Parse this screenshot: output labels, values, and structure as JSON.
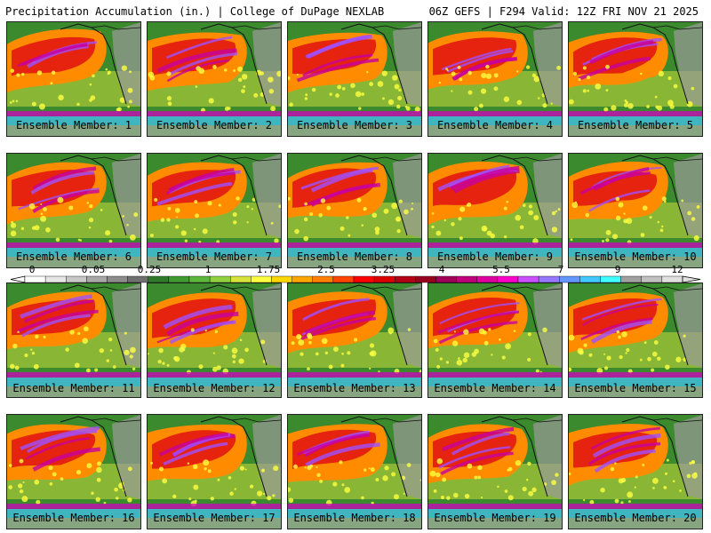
{
  "header": {
    "left_title": "Precipitation Accumulation (in.) | College of DuPage NEXLAB",
    "right_title": "06Z GEFS | F294 Valid: 12Z FRI NOV 21 2025"
  },
  "members": [
    {
      "label": "Ensemble Member: 1"
    },
    {
      "label": "Ensemble Member: 2"
    },
    {
      "label": "Ensemble Member: 3"
    },
    {
      "label": "Ensemble Member: 4"
    },
    {
      "label": "Ensemble Member: 5"
    },
    {
      "label": "Ensemble Member: 6"
    },
    {
      "label": "Ensemble Member: 7"
    },
    {
      "label": "Ensemble Member: 8"
    },
    {
      "label": "Ensemble Member: 9"
    },
    {
      "label": "Ensemble Member: 10"
    },
    {
      "label": "Ensemble Member: 11"
    },
    {
      "label": "Ensemble Member: 12"
    },
    {
      "label": "Ensemble Member: 13"
    },
    {
      "label": "Ensemble Member: 14"
    },
    {
      "label": "Ensemble Member: 15"
    },
    {
      "label": "Ensemble Member: 16"
    },
    {
      "label": "Ensemble Member: 17"
    },
    {
      "label": "Ensemble Member: 18"
    },
    {
      "label": "Ensemble Member: 19"
    },
    {
      "label": "Ensemble Member: 20"
    }
  ],
  "colorbar": {
    "tick_labels": [
      "0",
      "0.05",
      "0.25",
      "1",
      "1.75",
      "2.5",
      "3.25",
      "4",
      "5.5",
      "7",
      "9",
      "12"
    ],
    "colors": [
      "#ffffff",
      "#e6e6e6",
      "#c8c8c8",
      "#a8a8a8",
      "#8c8c8c",
      "#707070",
      "#2f7a2a",
      "#3f9a30",
      "#5cb83a",
      "#8fd13f",
      "#d6e33a",
      "#ffff40",
      "#ffd700",
      "#ffa500",
      "#ff7f00",
      "#ff4500",
      "#ff0000",
      "#dc0000",
      "#b40014",
      "#96001e",
      "#a0005a",
      "#c0007a",
      "#e000a0",
      "#ff00c8",
      "#c850ff",
      "#9678ff",
      "#6496ff",
      "#40c8ff",
      "#40ffff",
      "#a0a0a0",
      "#c0c0c0",
      "#e0e0e0"
    ]
  }
}
